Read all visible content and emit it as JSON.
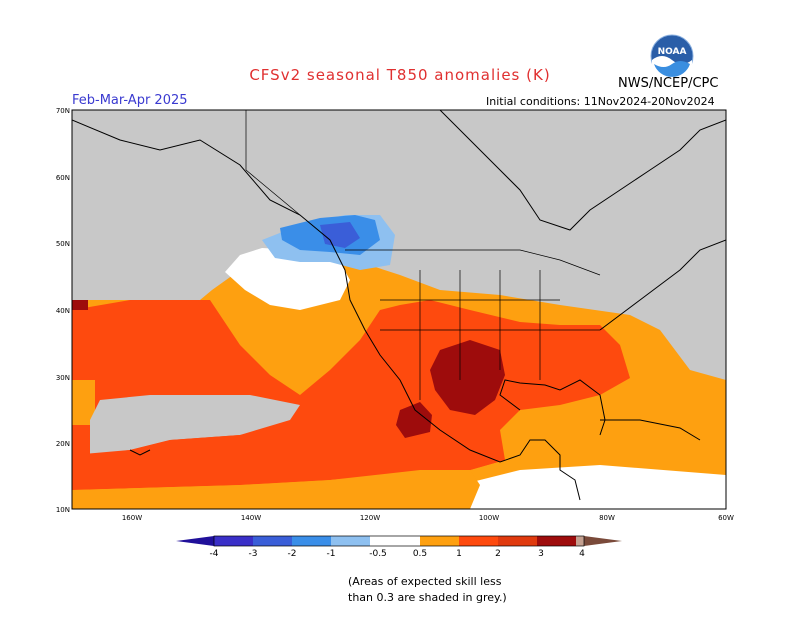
{
  "title": "CFSv2 seasonal T850 anomalies (K)",
  "organization": "NWS/NCEP/CPC",
  "logo_text": "NOAA",
  "season": "Feb-Mar-Apr 2025",
  "initial_conditions": "Initial conditions: 11Nov2024-20Nov2024",
  "lat_labels": [
    "70N",
    "60N",
    "50N",
    "40N",
    "30N",
    "20N",
    "10N"
  ],
  "lon_labels": [
    "160W",
    "140W",
    "120W",
    "100W",
    "80W",
    "60W"
  ],
  "legend": {
    "labels": [
      "-4",
      "-3",
      "-2",
      "-1",
      "-0.5",
      "0.5",
      "1",
      "2",
      "3",
      "4"
    ],
    "colors": {
      "lt_neg4": "#20109a",
      "neg4_neg3": "#3a2fc8",
      "neg3_neg2": "#3a5ed8",
      "neg2_neg1": "#3a8ee8",
      "neg1_neg05": "#8ec0f0",
      "neutral": "#ffffff",
      "p05_p1": "#fea010",
      "p1_p2": "#fe4a0e",
      "p2_p3": "#e03a0e",
      "p3_p4": "#9e0c0c",
      "p4_p5": "#c4a090",
      "gt5": "#7a4a3a"
    }
  },
  "colors": {
    "low_skill_grey": "#c8c8c8",
    "land_outline": "#000000"
  },
  "note_line1": "(Areas of expected skill less",
  "note_line2": "than 0.3 are shaded in grey.)"
}
